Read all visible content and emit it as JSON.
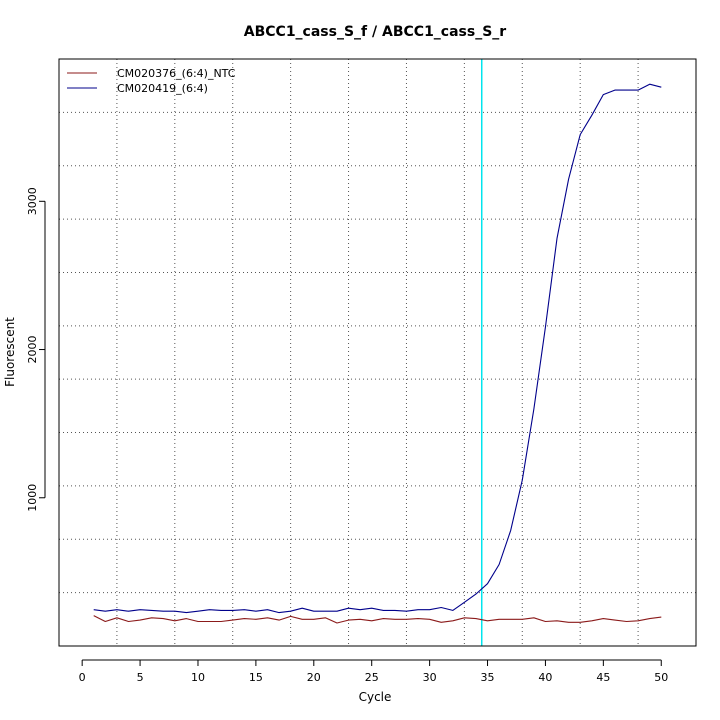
{
  "chart_data": {
    "type": "line",
    "title": "ABCC1_cass_S_f / ABCC1_cass_S_r",
    "xlabel": "Cycle",
    "ylabel": "Fluorescent",
    "xlim": [
      -2,
      53
    ],
    "ylim": [
      0,
      3960
    ],
    "xticks": [
      0,
      5,
      10,
      15,
      20,
      25,
      30,
      35,
      40,
      45,
      50
    ],
    "yticks": [
      1000,
      2000,
      3000
    ],
    "x_gridlines": [
      3,
      8,
      13,
      18,
      23,
      28,
      33,
      38,
      43,
      48
    ],
    "y_gridlines": [
      360,
      720,
      1080,
      1440,
      1800,
      2160,
      2520,
      2880,
      3240,
      3600
    ],
    "grid": true,
    "legend_position": "top-left",
    "threshold": {
      "x": 34.5,
      "color": "#00e5ee"
    },
    "x": [
      1,
      2,
      3,
      4,
      5,
      6,
      7,
      8,
      9,
      10,
      11,
      12,
      13,
      14,
      15,
      16,
      17,
      18,
      19,
      20,
      21,
      22,
      23,
      24,
      25,
      26,
      27,
      28,
      29,
      30,
      31,
      32,
      33,
      34,
      35,
      36,
      37,
      38,
      39,
      40,
      41,
      42,
      43,
      44,
      45,
      46,
      47,
      48,
      49,
      50
    ],
    "series": [
      {
        "name": "CM020376_(6:4)_NTC",
        "color": "#8b1a1a",
        "values": [
          205,
          165,
          190,
          165,
          175,
          190,
          185,
          170,
          185,
          165,
          165,
          165,
          175,
          185,
          180,
          190,
          175,
          200,
          180,
          180,
          190,
          155,
          175,
          180,
          170,
          185,
          180,
          180,
          185,
          180,
          160,
          170,
          190,
          185,
          170,
          180,
          180,
          180,
          190,
          165,
          170,
          160,
          160,
          170,
          185,
          175,
          165,
          170,
          185,
          195
        ]
      },
      {
        "name": "CM020419_(6:4)",
        "color": "#00008b",
        "values": [
          245,
          235,
          245,
          235,
          245,
          240,
          235,
          235,
          225,
          235,
          245,
          240,
          240,
          245,
          235,
          245,
          225,
          235,
          255,
          235,
          235,
          235,
          255,
          245,
          255,
          240,
          240,
          235,
          245,
          245,
          260,
          240,
          295,
          350,
          420,
          550,
          780,
          1120,
          1600,
          2150,
          2750,
          3150,
          3450,
          3580,
          3720,
          3750,
          3750,
          3750,
          3790,
          3770
        ]
      }
    ]
  }
}
